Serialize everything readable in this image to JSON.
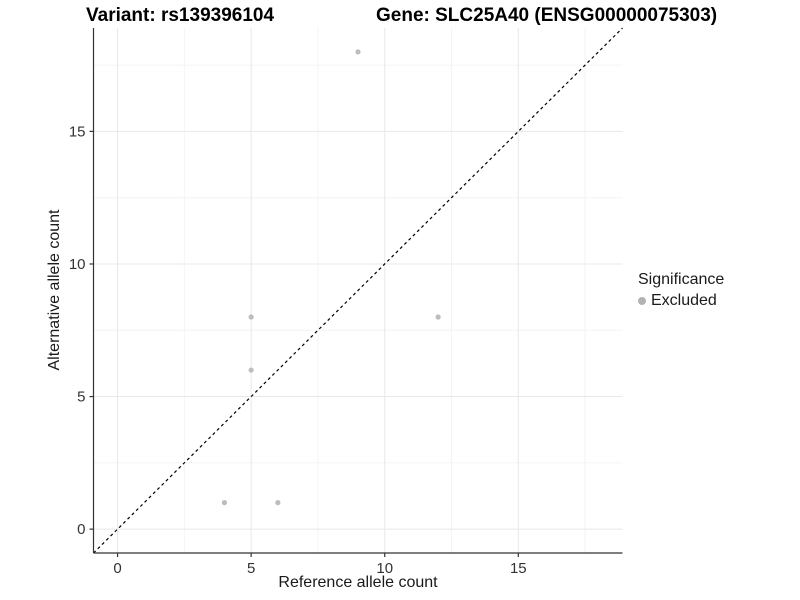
{
  "header": {
    "variant_title": "Variant: rs139396104",
    "gene_title": "Gene: SLC25A40 (ENSG00000075303)"
  },
  "legend": {
    "title": "Significance",
    "items": [
      {
        "label": "Excluded",
        "color": "#b3b3b3"
      }
    ]
  },
  "chart_data": {
    "type": "scatter",
    "title_left": "Variant: rs139396104",
    "title_right": "Gene: SLC25A40 (ENSG00000075303)",
    "xlabel": "Reference allele count",
    "ylabel": "Alternative allele count",
    "xlim": [
      -0.9,
      18.9
    ],
    "ylim": [
      -0.9,
      18.9
    ],
    "x_ticks": [
      0,
      5,
      10,
      15
    ],
    "y_ticks": [
      0,
      5,
      10,
      15
    ],
    "x_minor_ticks": [
      2.5,
      7.5,
      12.5,
      17.5
    ],
    "y_minor_ticks": [
      2.5,
      7.5,
      12.5,
      17.5
    ],
    "grid": "major+minor",
    "legend_position": "right",
    "series": [
      {
        "name": "Excluded",
        "marker": "circle",
        "color": "#bdbdbd",
        "points": [
          [
            9,
            18
          ],
          [
            5,
            8
          ],
          [
            12,
            8
          ],
          [
            5,
            6
          ],
          [
            4,
            1
          ],
          [
            6,
            1
          ]
        ]
      }
    ],
    "reference_line": {
      "type": "identity",
      "equation": "y = x",
      "style": "dashed",
      "color": "#000000"
    }
  },
  "colors": {
    "background": "#ffffff",
    "grid_major": "#e8e8e8",
    "grid_minor": "#f4f4f4",
    "axis_line": "#333333",
    "tick_text": "#333333",
    "point": "#bdbdbd",
    "legend_swatch": "#b3b3b3"
  }
}
